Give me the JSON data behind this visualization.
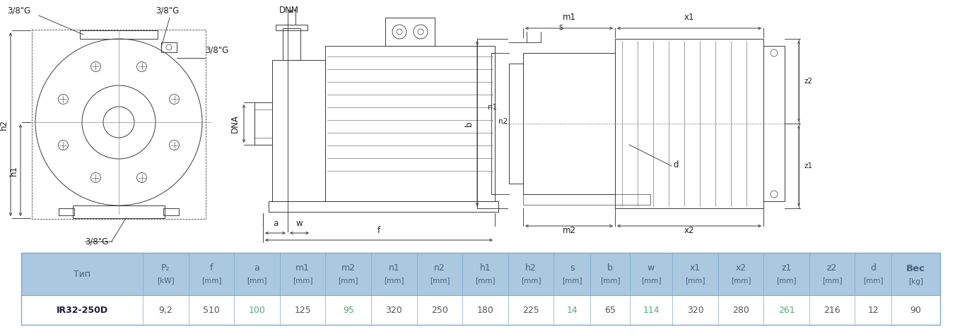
{
  "table": {
    "header_bg": "#aac8e0",
    "header_text_color": "#4a6080",
    "row_bg": "#ffffff",
    "border_color": "#7aaac8",
    "col_labels_line1": [
      "Тип",
      "P₂",
      "f",
      "a",
      "m1",
      "m2",
      "n1",
      "n2",
      "h1",
      "h2",
      "s",
      "b",
      "w",
      "x1",
      "x2",
      "z1",
      "z2",
      "d",
      "Вес"
    ],
    "col_labels_line2": [
      "",
      "[kW]",
      "[mm]",
      "[mm]",
      "[mm]",
      "[mm]",
      "[mm]",
      "[mm]",
      "[mm]",
      "[mm]",
      "[mm]",
      "[mm]",
      "[mm]",
      "[mm]",
      "[mm]",
      "[mm]",
      "[mm]",
      "[mm]",
      "[kg]"
    ],
    "data_row": [
      "IR32-250D",
      "9,2",
      "510",
      "100",
      "125",
      "95",
      "320",
      "250",
      "180",
      "225",
      "14",
      "65",
      "114",
      "320",
      "280",
      "261",
      "216",
      "12",
      "90"
    ],
    "highlight_col_indices": [
      3,
      5,
      10,
      12,
      15
    ],
    "highlight_data_color": "#55aa77",
    "normal_data_color": "#555555",
    "col_widths_raw": [
      2.0,
      0.75,
      0.75,
      0.75,
      0.75,
      0.75,
      0.75,
      0.75,
      0.75,
      0.75,
      0.6,
      0.65,
      0.7,
      0.75,
      0.75,
      0.75,
      0.75,
      0.6,
      0.8
    ]
  },
  "lc": "#3a3a3a",
  "lw": 0.7,
  "dim_color": "#3a3a3a",
  "label_color": "#222222",
  "fs": 8.5
}
